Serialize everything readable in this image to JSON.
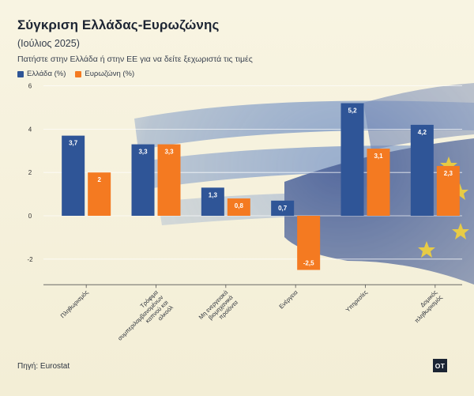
{
  "title": "Σύγκριση Ελλάδας-Ευρωζώνης",
  "subtitle": "(Ιούλιος 2025)",
  "instruction": "Πατήστε στην Ελλάδα ή στην ΕΕ για να δείτε ξεχωριστά τις τιμές",
  "source": "Πηγή: Eurostat",
  "logo_text": "OT",
  "colors": {
    "greece": "#2f5597",
    "eurozone": "#f47a21",
    "grid": "#ffffff",
    "text": "#333333"
  },
  "chart_data": {
    "type": "bar",
    "categories": [
      "Πληθωρισμός",
      "Τρόφιμα συμπεριλαμβανομένων καπνού και αλκοόλ",
      "Μη ενεργειακά βιομηχανικά προϊόντα",
      "Ενέργεια",
      "Υπηρεσίες",
      "Δομικός πληθωρισμός"
    ],
    "series": [
      {
        "name": "Ελλάδα (%)",
        "values": [
          3.7,
          3.3,
          1.3,
          0.7,
          5.2,
          4.2
        ],
        "labels": [
          "3,7",
          "3,3",
          "1,3",
          "0,7",
          "5,2",
          "4,2"
        ]
      },
      {
        "name": "Ευρωζώνη (%)",
        "values": [
          2.0,
          3.3,
          0.8,
          -2.5,
          3.1,
          2.3
        ],
        "labels": [
          "2",
          "3,3",
          "0,8",
          "-2,5",
          "3,1",
          "2,3"
        ]
      }
    ],
    "ylim": [
      -3,
      6
    ],
    "yticks": [
      -2,
      0,
      2,
      4,
      6
    ],
    "ytick_labels": [
      "-2",
      "0",
      "2",
      "4",
      "6"
    ],
    "grid": true,
    "legend_position": "top-left"
  }
}
